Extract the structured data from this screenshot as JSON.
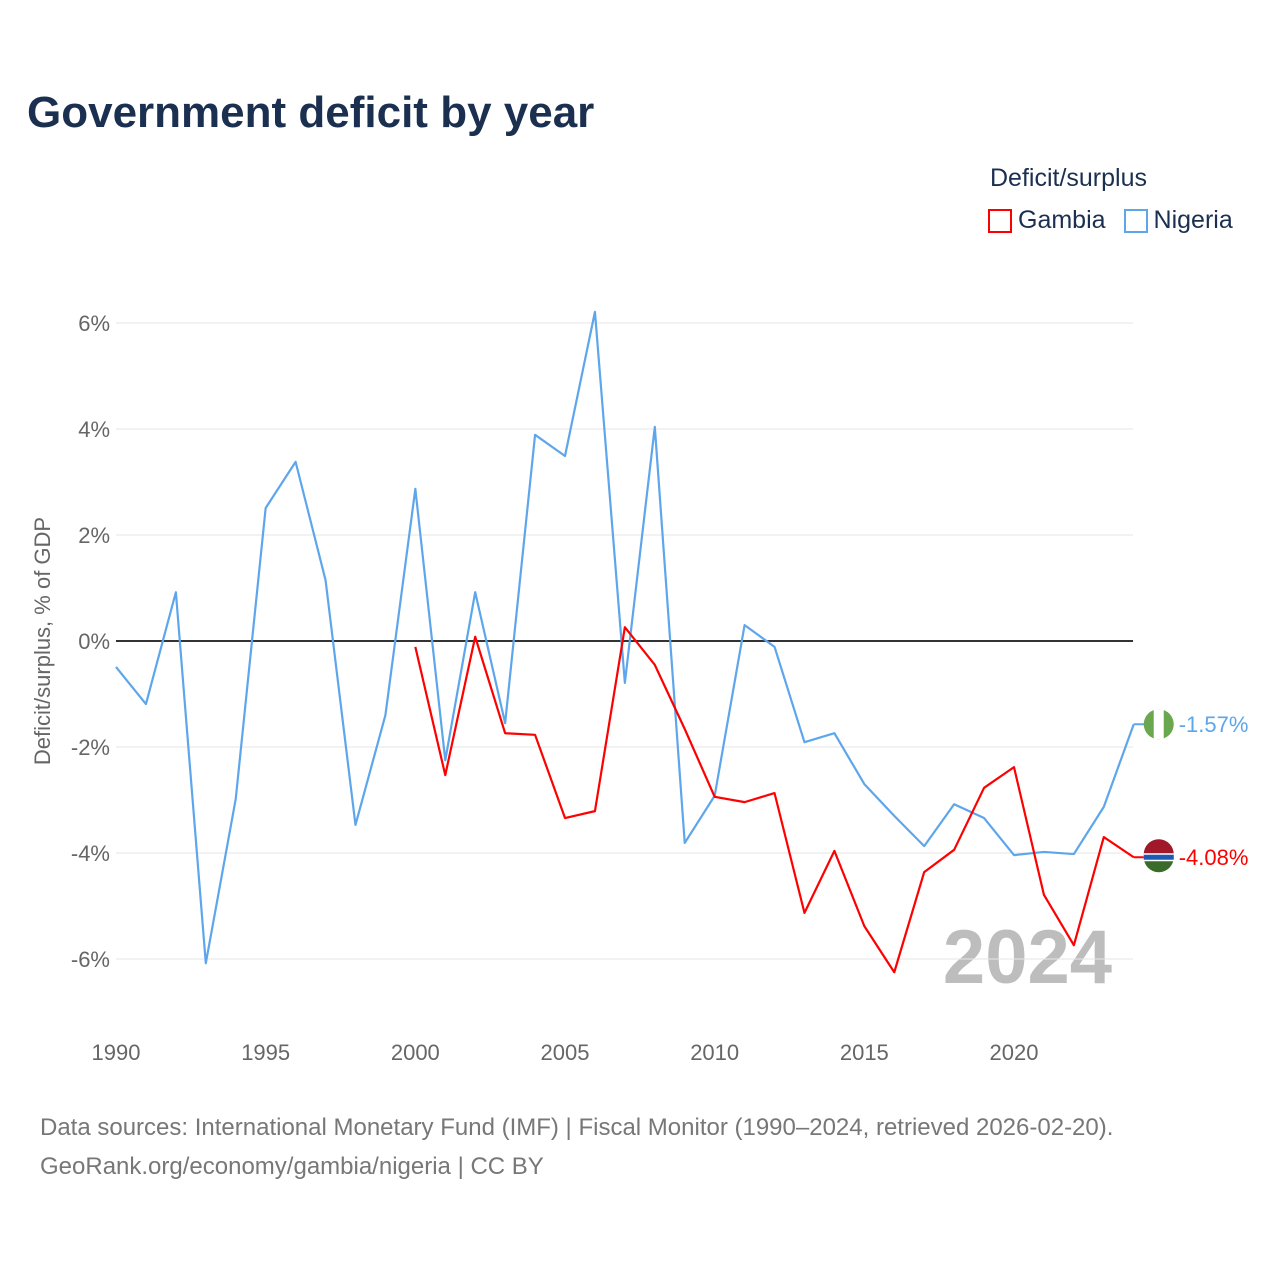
{
  "chart_data": {
    "type": "line",
    "title": "Government deficit by year",
    "ylabel": "Deficit/surplus, % of GDP",
    "xlabel": "",
    "legend_title": "Deficit/surplus",
    "legend_position": "top-right",
    "xlim": [
      1990,
      2024
    ],
    "ylim": [
      -7,
      6.5
    ],
    "x_ticks": [
      1990,
      1995,
      2000,
      2005,
      2010,
      2015,
      2020
    ],
    "x_tick_labels": [
      "1990",
      "1995",
      "2000",
      "2005",
      "2010",
      "2015",
      "2020"
    ],
    "y_ticks": [
      -6,
      -4,
      -2,
      0,
      2,
      4,
      6
    ],
    "y_tick_labels": [
      "-6%",
      "-4%",
      "-2%",
      "0%",
      "2%",
      "4%",
      "6%"
    ],
    "grid": true,
    "year_watermark": "2024",
    "series": [
      {
        "name": "Gambia",
        "color": "#ff0000",
        "end_label": "-4.08%",
        "x": [
          2000,
          2001,
          2002,
          2003,
          2004,
          2005,
          2006,
          2007,
          2008,
          2009,
          2010,
          2011,
          2012,
          2013,
          2014,
          2015,
          2016,
          2017,
          2018,
          2019,
          2020,
          2021,
          2022,
          2023,
          2024
        ],
        "values": [
          -0.11,
          -2.53,
          0.08,
          -1.74,
          -1.77,
          -3.34,
          -3.21,
          0.26,
          -0.45,
          -1.66,
          -2.94,
          -3.04,
          -2.87,
          -5.13,
          -3.96,
          -5.38,
          -6.25,
          -4.36,
          -3.94,
          -2.77,
          -2.38,
          -4.79,
          -5.74,
          -3.7,
          -4.08
        ]
      },
      {
        "name": "Nigeria",
        "color": "#5ea6ec",
        "end_label": "-1.57%",
        "x": [
          1990,
          1991,
          1992,
          1993,
          1994,
          1995,
          1996,
          1997,
          1998,
          1999,
          2000,
          2001,
          2002,
          2003,
          2004,
          2005,
          2006,
          2007,
          2008,
          2009,
          2010,
          2011,
          2012,
          2013,
          2014,
          2015,
          2016,
          2017,
          2018,
          2019,
          2020,
          2021,
          2022,
          2023,
          2024
        ],
        "values": [
          -0.49,
          -1.19,
          0.92,
          -6.08,
          -2.98,
          2.51,
          3.38,
          1.15,
          -3.47,
          -1.4,
          2.87,
          -2.25,
          0.92,
          -1.55,
          3.89,
          3.49,
          6.21,
          -0.79,
          4.04,
          -3.81,
          -2.92,
          0.3,
          -0.11,
          -1.91,
          -1.74,
          -2.7,
          -3.3,
          -3.87,
          -3.08,
          -3.34,
          -4.04,
          -3.98,
          -4.02,
          -3.13,
          -1.57
        ]
      }
    ]
  },
  "footer": {
    "line1": "Data sources: International Monetary Fund (IMF) | Fiscal Monitor (1990–2024, retrieved 2026-02-20).",
    "line2": "GeoRank.org/economy/gambia/nigeria | CC BY"
  }
}
